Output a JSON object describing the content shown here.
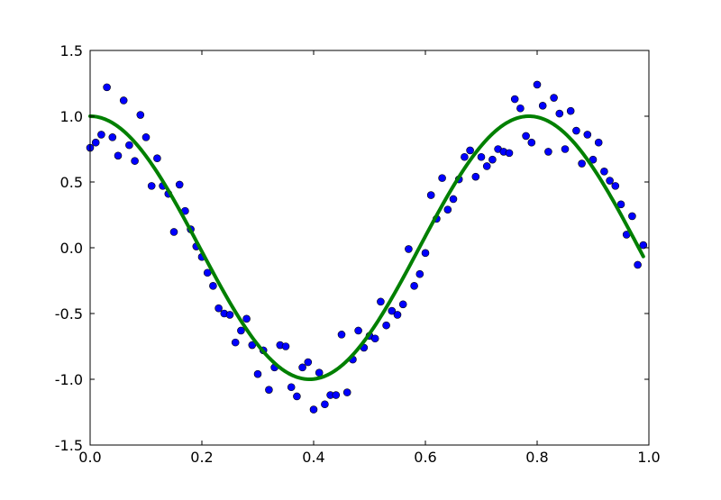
{
  "chart_data": {
    "type": "scatter",
    "title": "",
    "xlabel": "",
    "ylabel": "",
    "xlim": [
      0.0,
      1.0
    ],
    "ylim": [
      -1.5,
      1.5
    ],
    "x_ticks": [
      "0.0",
      "0.2",
      "0.4",
      "0.6",
      "0.8",
      "1.0"
    ],
    "y_ticks": [
      "1.5",
      "1.0",
      "0.5",
      "0.0",
      "-0.5",
      "-1.0",
      "-1.5"
    ],
    "grid": false,
    "legend": "none",
    "series": [
      {
        "kind": "scatter",
        "color": "#0000ff",
        "edge_color": "#000000",
        "x": [
          0.0,
          0.01,
          0.02,
          0.03,
          0.04,
          0.05,
          0.06,
          0.07,
          0.08,
          0.09,
          0.1,
          0.11,
          0.12,
          0.13,
          0.14,
          0.15,
          0.16,
          0.17,
          0.18,
          0.19,
          0.2,
          0.21,
          0.22,
          0.23,
          0.24,
          0.25,
          0.26,
          0.27,
          0.28,
          0.29,
          0.3,
          0.31,
          0.32,
          0.33,
          0.34,
          0.35,
          0.36,
          0.37,
          0.38,
          0.39,
          0.4,
          0.41,
          0.42,
          0.43,
          0.44,
          0.45,
          0.46,
          0.47,
          0.48,
          0.49,
          0.5,
          0.51,
          0.52,
          0.53,
          0.54,
          0.55,
          0.56,
          0.57,
          0.58,
          0.59,
          0.6,
          0.61,
          0.62,
          0.63,
          0.64,
          0.65,
          0.66,
          0.67,
          0.68,
          0.69,
          0.7,
          0.71,
          0.72,
          0.73,
          0.74,
          0.75,
          0.76,
          0.77,
          0.78,
          0.79,
          0.8,
          0.81,
          0.82,
          0.83,
          0.84,
          0.85,
          0.86,
          0.87,
          0.88,
          0.89,
          0.9,
          0.91,
          0.92,
          0.93,
          0.94,
          0.95,
          0.96,
          0.97,
          0.98,
          0.99
        ],
        "y": [
          0.76,
          0.8,
          0.86,
          1.22,
          0.84,
          0.7,
          1.12,
          0.78,
          0.66,
          1.01,
          0.84,
          0.47,
          0.68,
          0.47,
          0.41,
          0.12,
          0.48,
          0.28,
          0.14,
          0.01,
          -0.07,
          -0.19,
          -0.29,
          -0.46,
          -0.5,
          -0.51,
          -0.72,
          -0.63,
          -0.54,
          -0.74,
          -0.96,
          -0.78,
          -1.08,
          -0.91,
          -0.74,
          -0.75,
          -1.06,
          -1.13,
          -0.91,
          -0.87,
          -1.23,
          -0.95,
          -1.19,
          -1.12,
          -1.12,
          -0.66,
          -1.1,
          -0.85,
          -0.63,
          -0.76,
          -0.67,
          -0.69,
          -0.41,
          -0.59,
          -0.48,
          -0.51,
          -0.43,
          -0.01,
          -0.29,
          -0.2,
          -0.04,
          0.4,
          0.22,
          0.53,
          0.29,
          0.37,
          0.52,
          0.69,
          0.74,
          0.54,
          0.69,
          0.62,
          0.67,
          0.75,
          0.73,
          0.72,
          1.13,
          1.06,
          0.85,
          0.8,
          1.24,
          1.08,
          0.73,
          1.14,
          1.02,
          0.75,
          1.04,
          0.89,
          0.64,
          0.86,
          0.67,
          0.8,
          0.58,
          0.51,
          0.47,
          0.33,
          0.1,
          0.24,
          -0.13,
          0.02
        ]
      },
      {
        "kind": "line",
        "color": "#008000",
        "function": "cos(8x)"
      }
    ]
  }
}
